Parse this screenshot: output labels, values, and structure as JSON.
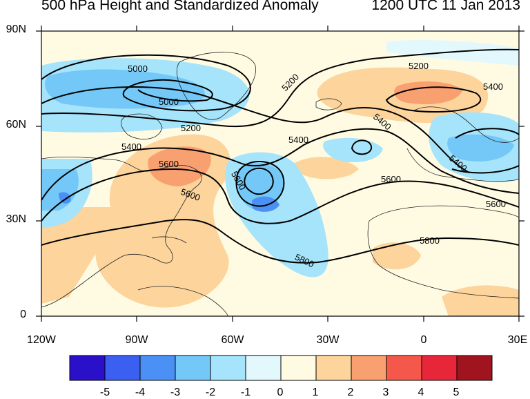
{
  "title": {
    "left": "500 hPa Height and Standardized Anomaly",
    "right": "1200 UTC 11 Jan 2013"
  },
  "lat_labels": [
    "90N",
    "60N",
    "30N",
    "0"
  ],
  "lon_labels": [
    "120W",
    "90W",
    "60W",
    "30W",
    "0",
    "30E"
  ],
  "colorbar": {
    "labels": [
      "-5",
      "-4",
      "-3",
      "-2",
      "-1",
      "0",
      "1",
      "2",
      "3",
      "4",
      "5"
    ],
    "colors": [
      "#2a10c8",
      "#3b5ff0",
      "#4a90f5",
      "#74c8f8",
      "#a6e4fb",
      "#e3f8fd",
      "#fffbe3",
      "#fcd49c",
      "#f9a070",
      "#f4584a",
      "#e8263a",
      "#a01420"
    ]
  },
  "contour_labels": [
    "5000",
    "5000",
    "5200",
    "5200",
    "5200",
    "5400",
    "5400",
    "5400",
    "5400",
    "5400",
    "5600",
    "5600",
    "5600",
    "5600",
    "5600",
    "5800",
    "5800"
  ]
}
